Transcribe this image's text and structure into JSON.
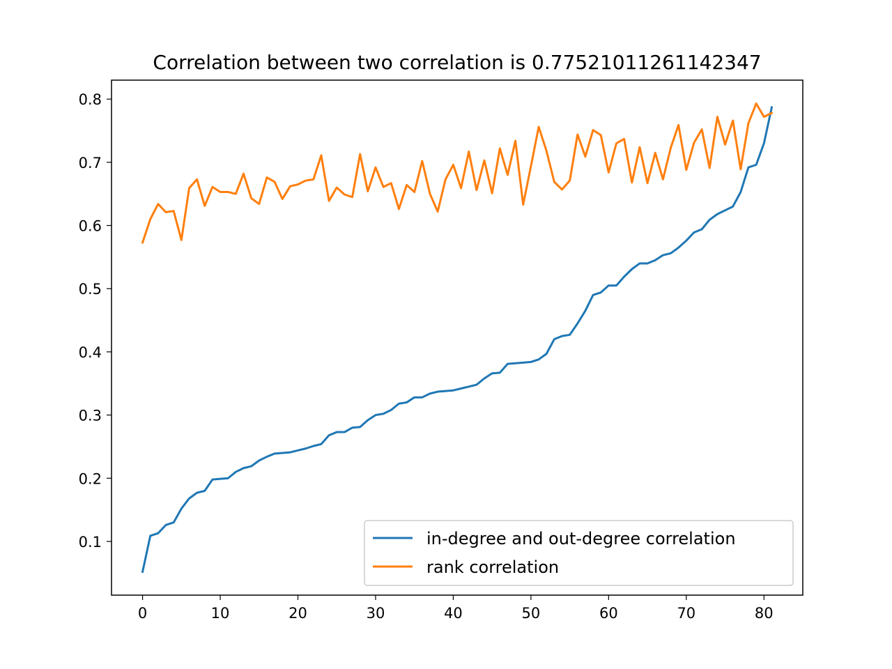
{
  "chart_data": {
    "type": "line",
    "title": "Correlation between two correlation is 0.7752101126114234​7",
    "xlabel": "",
    "ylabel": "",
    "xlim": [
      -4,
      85
    ],
    "ylim": [
      0.015,
      0.83
    ],
    "xticks": [
      0,
      10,
      20,
      30,
      40,
      50,
      60,
      70,
      80
    ],
    "yticks": [
      0.1,
      0.2,
      0.3,
      0.4,
      0.5,
      0.6,
      0.7,
      0.8
    ],
    "grid": false,
    "legend_position": "lower-right",
    "series": [
      {
        "name": "in-degree and out-degree correlation",
        "color": "#1f77b4",
        "values": [
          0.052,
          0.109,
          0.113,
          0.126,
          0.13,
          0.152,
          0.168,
          0.177,
          0.18,
          0.198,
          0.199,
          0.2,
          0.21,
          0.216,
          0.219,
          0.228,
          0.234,
          0.239,
          0.24,
          0.241,
          0.244,
          0.247,
          0.251,
          0.254,
          0.268,
          0.273,
          0.273,
          0.28,
          0.281,
          0.292,
          0.3,
          0.302,
          0.308,
          0.318,
          0.32,
          0.328,
          0.328,
          0.334,
          0.337,
          0.338,
          0.339,
          0.342,
          0.345,
          0.348,
          0.358,
          0.366,
          0.367,
          0.381,
          0.382,
          0.383,
          0.384,
          0.388,
          0.397,
          0.42,
          0.425,
          0.427,
          0.445,
          0.465,
          0.49,
          0.494,
          0.505,
          0.505,
          0.519,
          0.531,
          0.54,
          0.54,
          0.545,
          0.553,
          0.556,
          0.565,
          0.576,
          0.589,
          0.594,
          0.609,
          0.618,
          0.624,
          0.63,
          0.653,
          0.692,
          0.696,
          0.73,
          0.787
        ]
      },
      {
        "name": "rank correlation",
        "color": "#ff7f0e",
        "values": [
          0.573,
          0.61,
          0.634,
          0.621,
          0.623,
          0.577,
          0.659,
          0.673,
          0.631,
          0.661,
          0.653,
          0.653,
          0.65,
          0.682,
          0.643,
          0.634,
          0.676,
          0.669,
          0.642,
          0.662,
          0.665,
          0.671,
          0.673,
          0.711,
          0.639,
          0.66,
          0.649,
          0.645,
          0.713,
          0.654,
          0.692,
          0.661,
          0.667,
          0.626,
          0.664,
          0.653,
          0.702,
          0.65,
          0.622,
          0.673,
          0.696,
          0.659,
          0.717,
          0.656,
          0.703,
          0.651,
          0.722,
          0.68,
          0.734,
          0.633,
          0.694,
          0.756,
          0.718,
          0.669,
          0.657,
          0.671,
          0.744,
          0.709,
          0.751,
          0.743,
          0.684,
          0.73,
          0.737,
          0.668,
          0.724,
          0.667,
          0.715,
          0.673,
          0.723,
          0.759,
          0.688,
          0.731,
          0.752,
          0.691,
          0.772,
          0.728,
          0.766,
          0.689,
          0.762,
          0.793,
          0.772,
          0.778
        ]
      }
    ]
  }
}
